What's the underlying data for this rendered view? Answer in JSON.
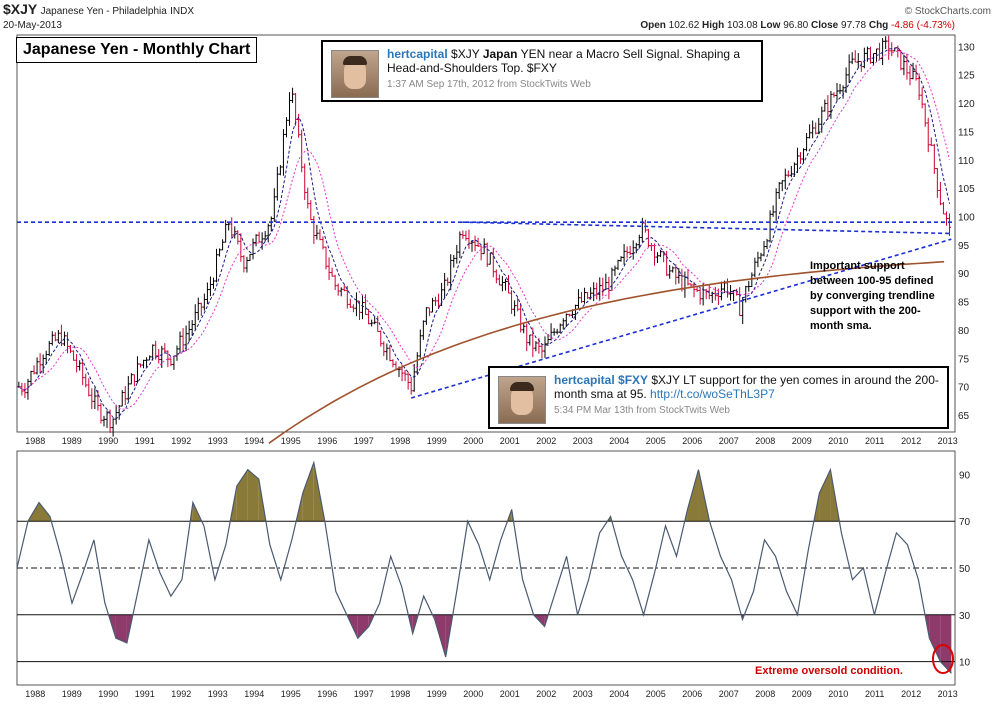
{
  "header": {
    "symbol": "$XJY",
    "name": "Japanese Yen - Philadelphia",
    "exchange": "INDX",
    "date": "20-May-2013",
    "open_label": "Open",
    "open": "102.62",
    "high_label": "High",
    "high": "103.08",
    "low_label": "Low",
    "low": "96.80",
    "close_label": "Close",
    "close": "97.78",
    "chg_label": "Chg",
    "chg": "-4.86 (-4.73%)",
    "brand": "© StockCharts.com"
  },
  "chart_title": "Japanese Yen - Monthly Chart",
  "tweet1": {
    "user": "hertcapital",
    "t1": " $XJY ",
    "t2": "Japan",
    "t3": " YEN near a Macro Sell Signal. Shaping a Head-and-Shoulders Top. $FXY",
    "meta": "1:37 AM Sep 17th, 2012 from StockTwits Web"
  },
  "tweet2": {
    "user": "hertcapital",
    "t1": " $FXY",
    "t2": " $XJY LT support for the yen comes in around the 200-month sma at 95. ",
    "link": "http://t.co/woSeThL3P7",
    "meta": "5:34 PM Mar 13th from StockTwits Web"
  },
  "note_support": "Important support between 100-95 defined by converging trendline support with the 200-month sma.",
  "note_oversold": "Extreme oversold condition.",
  "colors": {
    "up": "#000000",
    "down": "#cc0033",
    "ma_short": "#1a1a8c",
    "ma_mid": "#ee33cc",
    "ma_200": "#a0522d",
    "trend": "#1a2fd6",
    "osc": "#4a5a70",
    "fill_high": "#8a7a3a",
    "fill_low": "#8e3a6a"
  },
  "chart_data": [
    {
      "type": "line",
      "title": "Japanese Yen - Monthly Chart",
      "x_axis": {
        "years": [
          "1988",
          "1989",
          "1990",
          "1991",
          "1992",
          "1993",
          "1994",
          "1995",
          "1996",
          "1997",
          "1998",
          "1999",
          "2000",
          "2001",
          "2002",
          "2003",
          "2004",
          "2005",
          "2006",
          "2007",
          "2008",
          "2009",
          "2010",
          "2011",
          "2012",
          "2013"
        ]
      },
      "y_axis": {
        "ticks": [
          65,
          70,
          75,
          80,
          85,
          90,
          95,
          100,
          105,
          110,
          115,
          120,
          125,
          130
        ],
        "ylim": [
          62,
          132
        ],
        "side": "right"
      },
      "series": [
        {
          "values": [
            70,
            76,
            79,
            73,
            66,
            64,
            72,
            77,
            75,
            80,
            86,
            99,
            92,
            97,
            100,
            123,
            100,
            88,
            84,
            70,
            83,
            87,
            98,
            94,
            87,
            78,
            76,
            83,
            86,
            88,
            98,
            90,
            87,
            86,
            88,
            84,
            96,
            105,
            112,
            127,
            130,
            123,
            103,
            96
          ],
          "x": [
            1988,
            1988.5,
            1989,
            1989.5,
            1990,
            1990.4,
            1991,
            1991.5,
            1992,
            1992.5,
            1993,
            1993.6,
            1994,
            1994.5,
            1994.8,
            1995.3,
            1995.8,
            1996.5,
            1997.2,
            1998.6,
            1999,
            1999.5,
            2000,
            2000.6,
            2001.2,
            2001.8,
            2002.2,
            2002.8,
            2003.5,
            2004,
            2004.9,
            2005.7,
            2006.3,
            2006.8,
            2007.2,
            2007.6,
            2008.3,
            2008.7,
            2009.3,
            2010.7,
            2011.7,
            2012.5,
            2013.1,
            2013.4
          ]
        }
      ],
      "annotations": [
        {
          "text": "horizontal resistance",
          "value": 99
        },
        {
          "text": "rising trendline",
          "from": [
            1998.6,
            68
          ],
          "to": [
            2013.4,
            96
          ]
        },
        {
          "text": "falling trendline",
          "from": [
            2000,
            99
          ],
          "to": [
            2013.4,
            97
          ]
        }
      ]
    },
    {
      "type": "line",
      "title": "",
      "y_axis": {
        "ticks": [
          10,
          30,
          50,
          70,
          90
        ],
        "ylim": [
          0,
          100
        ],
        "reference_lines": [
          10,
          30,
          50,
          70
        ]
      },
      "series": [
        {
          "values": [
            50,
            70,
            78,
            72,
            55,
            35,
            48,
            62,
            35,
            20,
            18,
            40,
            62,
            48,
            38,
            45,
            78,
            68,
            45,
            60,
            85,
            92,
            88,
            60,
            45,
            62,
            82,
            95,
            70,
            40,
            30,
            20,
            25,
            35,
            55,
            42,
            22,
            38,
            28,
            12,
            40,
            70,
            60,
            45,
            62,
            75,
            45,
            30,
            25,
            40,
            55,
            30,
            45,
            65,
            72,
            55,
            45,
            30,
            48,
            68,
            55,
            75,
            92,
            70,
            55,
            45,
            28,
            40,
            62,
            55,
            40,
            30,
            58,
            82,
            92,
            65,
            45,
            50,
            30,
            48,
            65,
            60,
            45,
            20,
            10,
            5
          ],
          "x_start": 1987.8,
          "x_end": 2013.4
        }
      ]
    }
  ]
}
